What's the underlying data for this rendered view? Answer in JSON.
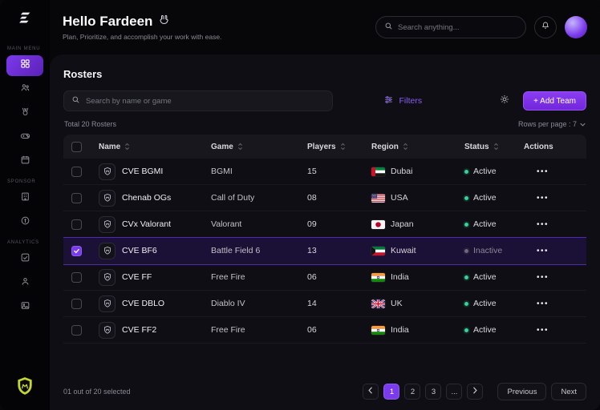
{
  "header": {
    "greeting": "Hello Fardeen",
    "subtitle": "Plan, Prioritize, and accomplish your work with ease.",
    "search_placeholder": "Search anything..."
  },
  "sidebar": {
    "main_menu_label": "MAIN MENU",
    "sponsor_label": "SPONSOR",
    "analytics_label": "ANALYTICS"
  },
  "rosters": {
    "title": "Rosters",
    "search_placeholder": "Search by name or game",
    "filters_label": "Filters",
    "add_team_label": "+ Add Team",
    "total_label": "Total 20 Rosters",
    "rows_per_page_label": "Rows per page : 7",
    "actions_glyph": "•••",
    "columns": [
      "Name",
      "Game",
      "Players",
      "Region",
      "Status",
      "Actions"
    ],
    "rows": [
      {
        "name": "CVE BGMI",
        "game": "BGMI",
        "players": "15",
        "region": "Dubai",
        "flag": "uae",
        "status": "Active",
        "selected": false
      },
      {
        "name": "Chenab OGs",
        "game": "Call of Duty",
        "players": "08",
        "region": "USA",
        "flag": "usa",
        "status": "Active",
        "selected": false
      },
      {
        "name": "CVx Valorant",
        "game": "Valorant",
        "players": "09",
        "region": "Japan",
        "flag": "japan",
        "status": "Active",
        "selected": false
      },
      {
        "name": "CVE BF6",
        "game": "Battle Field 6",
        "players": "13",
        "region": "Kuwait",
        "flag": "kuwait",
        "status": "Inactive",
        "selected": true
      },
      {
        "name": "CVE FF",
        "game": "Free Fire",
        "players": "06",
        "region": "India",
        "flag": "india",
        "status": "Active",
        "selected": false
      },
      {
        "name": "CVE DBLO",
        "game": "Diablo IV",
        "players": "14",
        "region": "UK",
        "flag": "uk",
        "status": "Active",
        "selected": false
      },
      {
        "name": "CVE FF2",
        "game": "Free Fire",
        "players": "06",
        "region": "India",
        "flag": "india",
        "status": "Active",
        "selected": false
      }
    ]
  },
  "footer": {
    "selected_label": "01 out of 20 selected",
    "pages": [
      "1",
      "2",
      "3"
    ],
    "ellipsis": "...",
    "previous_label": "Previous",
    "next_label": "Next"
  },
  "icons": {
    "search": "magnifier",
    "bell": "bell",
    "gear": "gear",
    "filters": "sliders",
    "sort": "up-down-chevrons",
    "actions": "three-dots",
    "chevron-down": "small-down-chevron",
    "chevron-left": "left-chevron",
    "chevron-right": "right-chevron"
  },
  "colors": {
    "accent": "#8b5cf6",
    "active": "#34d399",
    "inactive": "#6b6b75",
    "selected_row": "#1b1035",
    "add_button": "#7c2fe8"
  }
}
